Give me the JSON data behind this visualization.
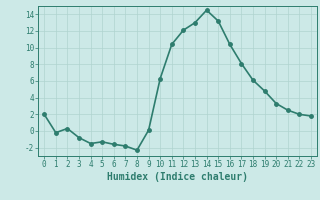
{
  "x": [
    0,
    1,
    2,
    3,
    4,
    5,
    6,
    7,
    8,
    9,
    10,
    11,
    12,
    13,
    14,
    15,
    16,
    17,
    18,
    19,
    20,
    21,
    22,
    23
  ],
  "y": [
    2.0,
    -0.2,
    0.3,
    -0.8,
    -1.5,
    -1.3,
    -1.6,
    -1.8,
    -2.3,
    0.1,
    6.3,
    10.4,
    12.1,
    13.0,
    14.5,
    13.2,
    10.4,
    8.1,
    6.1,
    4.8,
    3.3,
    2.5,
    2.0,
    1.8
  ],
  "line_color": "#2e7d6e",
  "marker": "o",
  "marker_size": 2.5,
  "bg_color": "#cce9e7",
  "grid_color": "#b0d4d0",
  "xlabel": "Humidex (Indice chaleur)",
  "ylim": [
    -3,
    15
  ],
  "xlim": [
    -0.5,
    23.5
  ],
  "yticks": [
    -2,
    0,
    2,
    4,
    6,
    8,
    10,
    12,
    14
  ],
  "xticks": [
    0,
    1,
    2,
    3,
    4,
    5,
    6,
    7,
    8,
    9,
    10,
    11,
    12,
    13,
    14,
    15,
    16,
    17,
    18,
    19,
    20,
    21,
    22,
    23
  ],
  "tick_label_size": 5.5,
  "xlabel_size": 7,
  "line_width": 1.2
}
